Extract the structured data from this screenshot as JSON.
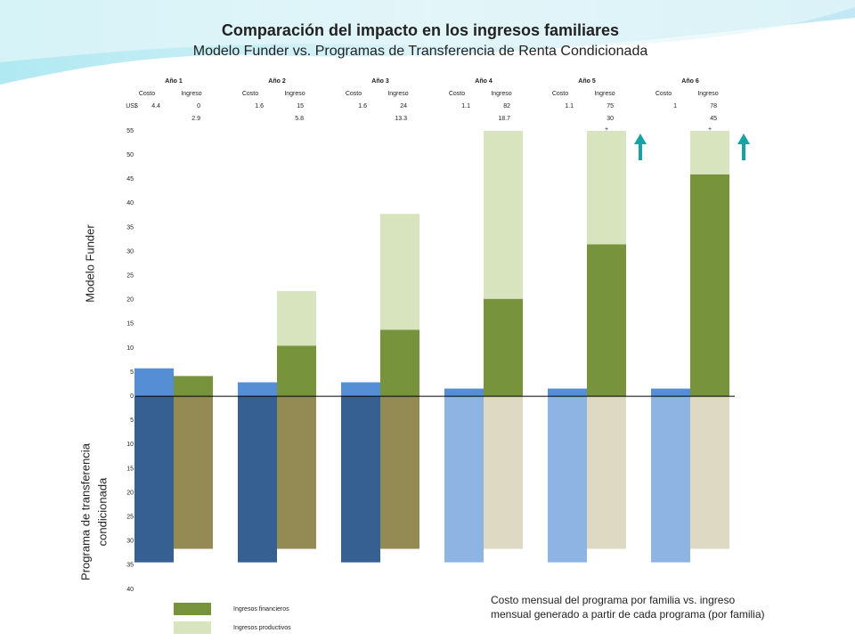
{
  "chart_data": {
    "type": "bar",
    "title": "Comparación del impacto en los ingresos familiares",
    "subtitle": "Modelo Funder vs. Programas de Transferencia de Renta Condicionada",
    "categories": [
      "Año 1",
      "Año 2",
      "Año 3",
      "Año 4",
      "Año 5",
      "Año 6"
    ],
    "header_table": {
      "sub_labels": [
        "Costo",
        "Ingreso"
      ],
      "currency": "US$",
      "costo": [
        4.4,
        1.6,
        1.6,
        1.1,
        1.1,
        1
      ],
      "ingreso": [
        0,
        15,
        24,
        82,
        75,
        78
      ],
      "ingreso_2": [
        2.9,
        5.8,
        13.3,
        18.7,
        30,
        45
      ]
    },
    "side_labels": [
      "Modelo Funder",
      [
        "Programa de transferencia",
        "condicionada"
      ]
    ],
    "ylim": [
      -40,
      55
    ],
    "yticks": [
      55,
      50,
      45,
      40,
      35,
      30,
      25,
      20,
      15,
      10,
      5,
      0,
      {
        "value": -5,
        "label": "5"
      },
      {
        "value": -10,
        "label": "10"
      },
      {
        "value": -15,
        "label": "15"
      },
      {
        "value": -20,
        "label": "20"
      },
      {
        "value": -25,
        "label": "25"
      },
      {
        "value": -30,
        "label": "30"
      },
      {
        "value": -35,
        "label": "35"
      },
      {
        "value": -40,
        "label": "40"
      }
    ],
    "funder_costo": {
      "color": "#558ed5",
      "values": [
        5.8,
        2.9,
        2.9,
        1.6,
        1.6,
        1.6
      ]
    },
    "series": [
      {
        "name": "Ingresos financieros",
        "color": "#77933c",
        "values": [
          4.2,
          10.5,
          13.8,
          20.2,
          31.5,
          46
        ]
      },
      {
        "name": "Ingresos productivos",
        "color": "#d7e4bd",
        "values": [
          0,
          11.3,
          24,
          34.8,
          23.5,
          9
        ]
      }
    ],
    "programa_costo": {
      "colors": [
        "#376092",
        "#376092",
        "#376092",
        "#8eb4e3",
        "#8eb4e3",
        "#8eb4e3"
      ],
      "values": [
        -34.4,
        -34.4,
        -34.4,
        -34.4,
        -34.4,
        -34.4
      ]
    },
    "programa_ingreso": {
      "colors": [
        "#948a54",
        "#948a54",
        "#948a54",
        "#ddd9c3",
        "#ddd9c3",
        "#ddd9c3"
      ],
      "values": [
        -31.6,
        -31.6,
        -31.6,
        -31.6,
        -31.6,
        -31.6
      ]
    },
    "plus_labels": [
      null,
      null,
      null,
      null,
      "+",
      "+"
    ],
    "arrow_color": "#17a2a6",
    "note": [
      "Costo mensual del programa por familia vs. ingreso",
      "mensual generado a partir de cada programa (por familia)"
    ]
  }
}
